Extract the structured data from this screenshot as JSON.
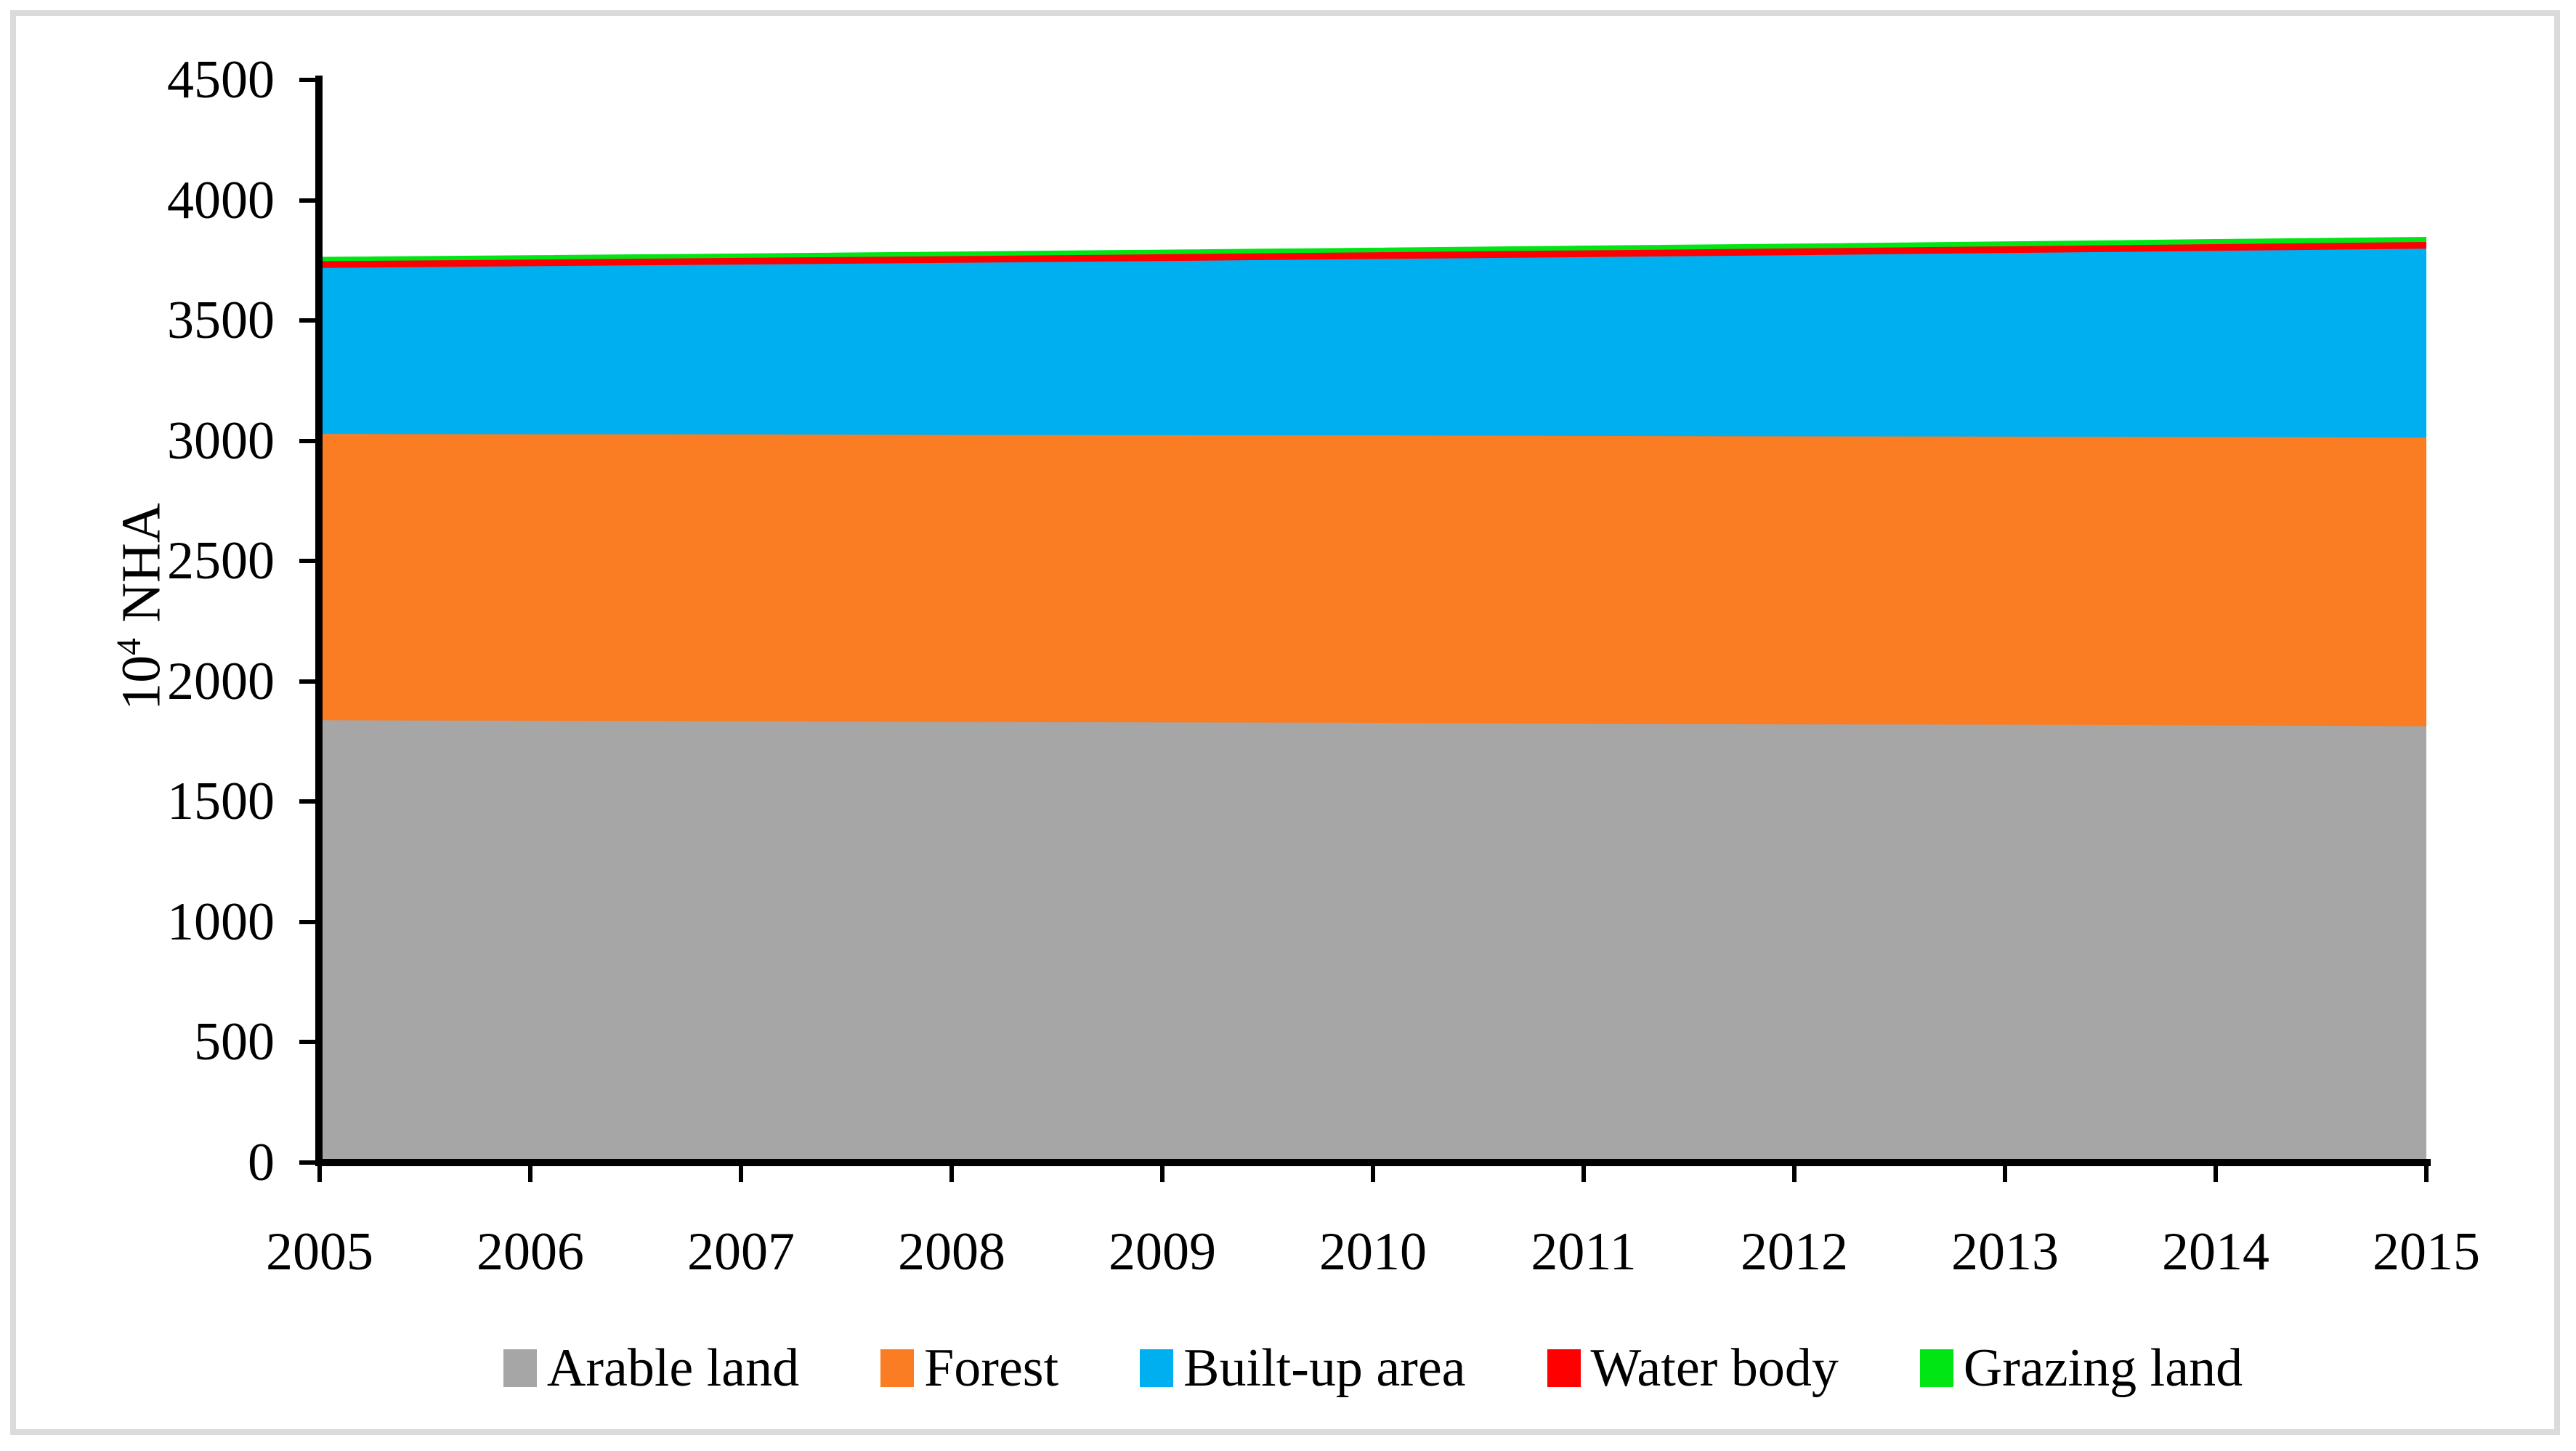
{
  "colors": {
    "frame": "#dbdbdb",
    "axis": "#000000",
    "background": "#ffffff"
  },
  "chart_data": {
    "type": "area",
    "stacked": true,
    "title": "",
    "grid": false,
    "legend_position": "bottom",
    "x": [
      2005,
      2006,
      2007,
      2008,
      2009,
      2010,
      2011,
      2012,
      2013,
      2014,
      2015
    ],
    "x_tick_labels": [
      "2005",
      "2006",
      "2007",
      "2008",
      "2009",
      "2010",
      "2011",
      "2012",
      "2013",
      "2014",
      "2015"
    ],
    "y_axis": {
      "label_base": "10",
      "label_exponent": "4",
      "label_unit": "NHA",
      "min": 0,
      "max": 4500,
      "tick_step": 500,
      "tick_labels": [
        "0",
        "500",
        "1000",
        "1500",
        "2000",
        "2500",
        "3000",
        "3500",
        "4000",
        "4500"
      ]
    },
    "series": [
      {
        "name": "Arable land",
        "color": "#a6a6a6",
        "values": [
          1840,
          1838,
          1836,
          1833,
          1831,
          1829,
          1826,
          1823,
          1821,
          1818,
          1815
        ]
      },
      {
        "name": "Forest",
        "color": "#fa7d23",
        "values": [
          1190,
          1191,
          1192,
          1193,
          1194,
          1195,
          1196,
          1197,
          1198,
          1199,
          1200
        ]
      },
      {
        "name": "Built-up area",
        "color": "#00aff0",
        "values": [
          690,
          698,
          706,
          715,
          724,
          733,
          743,
          753,
          763,
          774,
          785
        ]
      },
      {
        "name": "Water body",
        "color": "#ff0000",
        "values": [
          28,
          28,
          28,
          28,
          28,
          28,
          28,
          28,
          28,
          28,
          28
        ]
      },
      {
        "name": "Grazing land",
        "color": "#00e614",
        "values": [
          15,
          15,
          15,
          16,
          16,
          16,
          17,
          17,
          17,
          18,
          18
        ]
      }
    ]
  },
  "legend": {
    "items": [
      {
        "label": "Arable land",
        "color": "#a6a6a6"
      },
      {
        "label": "Forest",
        "color": "#fa7d23"
      },
      {
        "label": "Built-up area",
        "color": "#00aff0"
      },
      {
        "label": "Water body",
        "color": "#ff0000"
      },
      {
        "label": "Grazing land",
        "color": "#00e614"
      }
    ]
  }
}
